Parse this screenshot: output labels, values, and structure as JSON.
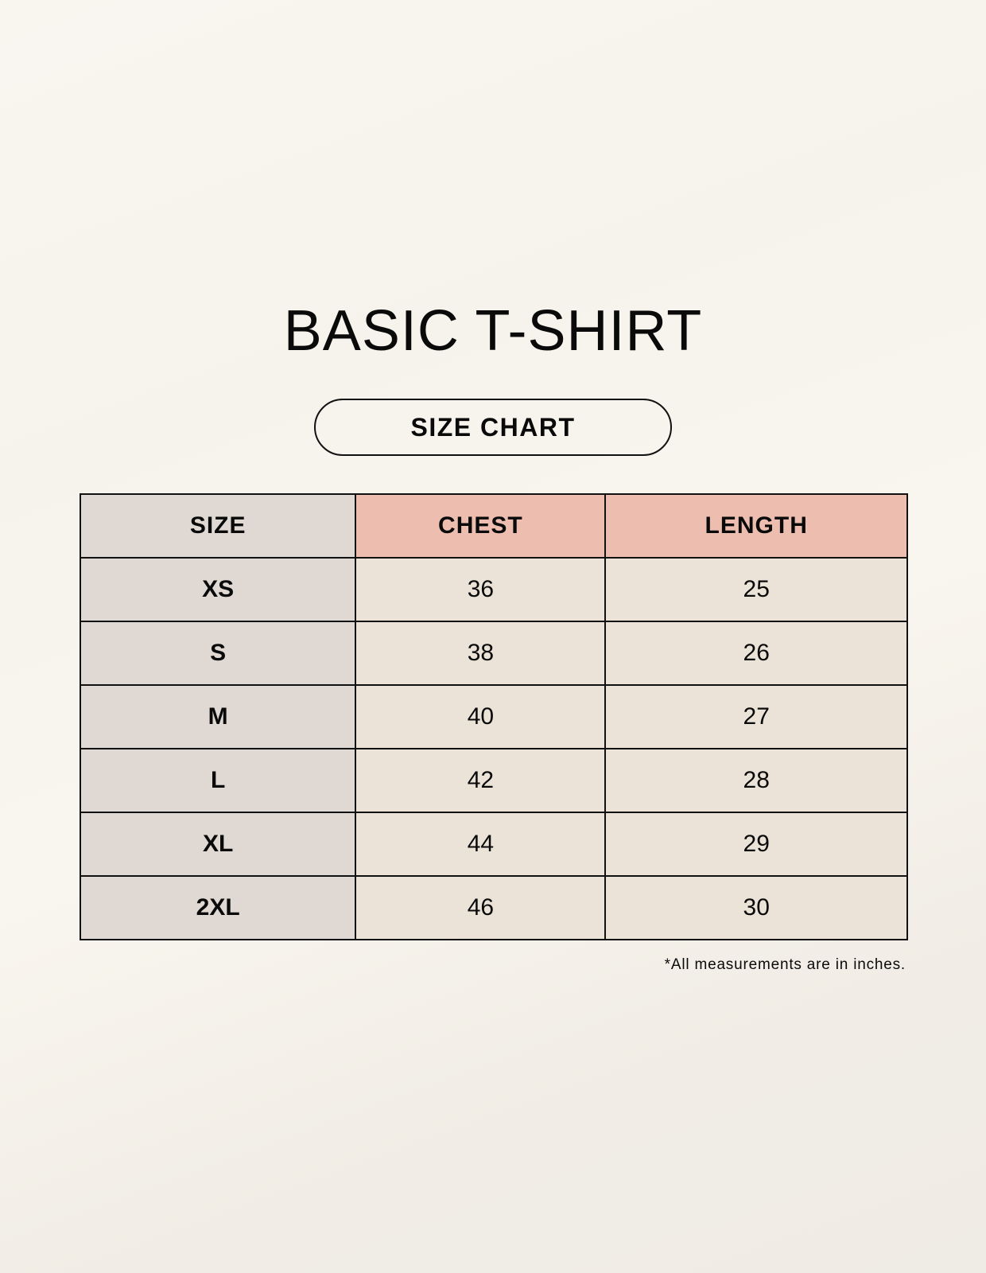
{
  "title": "BASIC T-SHIRT",
  "subtitle": "SIZE CHART",
  "table": {
    "headers": [
      "SIZE",
      "CHEST",
      "LENGTH"
    ],
    "rows": [
      [
        "XS",
        "36",
        "25"
      ],
      [
        "S",
        "38",
        "26"
      ],
      [
        "M",
        "40",
        "27"
      ],
      [
        "L",
        "42",
        "28"
      ],
      [
        "XL",
        "44",
        "29"
      ],
      [
        "2XL",
        "46",
        "30"
      ]
    ]
  },
  "footnote": "*All measurements are in inches.",
  "colors": {
    "size_column": "#e0d9d3",
    "header_accent": "#edbdaf",
    "cell": "#ebe3d8"
  }
}
